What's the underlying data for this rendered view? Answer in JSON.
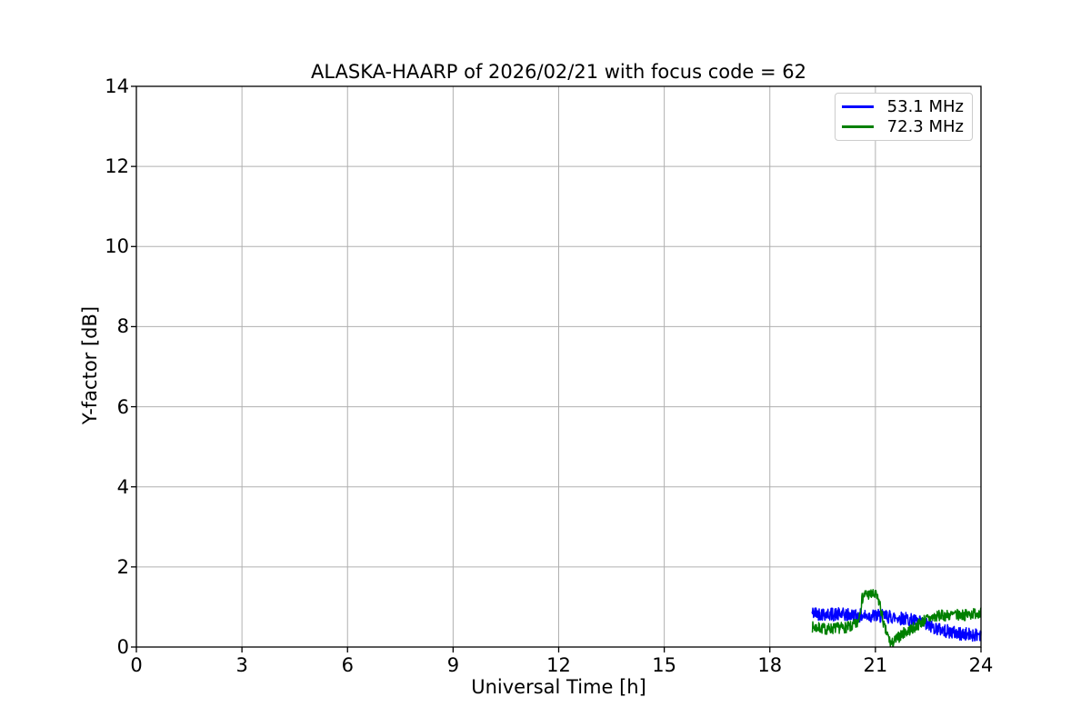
{
  "chart_data": {
    "type": "line",
    "title": "ALASKA-HAARP of 2026/02/21 with focus code = 62",
    "xlabel": "Universal Time [h]",
    "ylabel": "Y-factor [dB]",
    "xlim": [
      0,
      24
    ],
    "ylim": [
      0,
      14
    ],
    "xticks": [
      0,
      3,
      6,
      9,
      12,
      15,
      18,
      21,
      24
    ],
    "yticks": [
      0,
      2,
      4,
      6,
      8,
      10,
      12,
      14
    ],
    "grid": true,
    "grid_color": "#b0b0b0",
    "spine_color": "#000000",
    "background_color": "#ffffff",
    "legend": {
      "position": "top-right",
      "entries": [
        {
          "label": "53.1 MHz",
          "color": "#0000ff"
        },
        {
          "label": "72.3 MHz",
          "color": "#008000"
        }
      ]
    },
    "series": [
      {
        "name": "53.1 MHz",
        "color": "#0000ff",
        "x_start": 19.2,
        "x_end": 24.0,
        "envelope": [
          [
            19.2,
            0.85
          ],
          [
            19.7,
            0.82
          ],
          [
            20.2,
            0.8
          ],
          [
            20.7,
            0.78
          ],
          [
            21.0,
            0.78
          ],
          [
            21.5,
            0.75
          ],
          [
            21.9,
            0.7
          ],
          [
            22.3,
            0.6
          ],
          [
            22.7,
            0.48
          ],
          [
            23.0,
            0.4
          ],
          [
            23.4,
            0.33
          ],
          [
            23.7,
            0.3
          ],
          [
            24.0,
            0.33
          ]
        ],
        "noise_amplitude": 0.17,
        "points": 480,
        "seed": 42
      },
      {
        "name": "72.3 MHz",
        "color": "#008000",
        "x_start": 19.2,
        "x_end": 24.0,
        "envelope": [
          [
            19.2,
            0.5
          ],
          [
            19.6,
            0.45
          ],
          [
            20.0,
            0.48
          ],
          [
            20.3,
            0.5
          ],
          [
            20.5,
            0.6
          ],
          [
            20.62,
            1.2
          ],
          [
            20.7,
            1.32
          ],
          [
            21.0,
            1.3
          ],
          [
            21.12,
            1.1
          ],
          [
            21.25,
            0.5
          ],
          [
            21.45,
            0.06
          ],
          [
            21.6,
            0.2
          ],
          [
            21.8,
            0.35
          ],
          [
            22.1,
            0.48
          ],
          [
            22.4,
            0.68
          ],
          [
            22.8,
            0.78
          ],
          [
            23.2,
            0.8
          ],
          [
            23.6,
            0.8
          ],
          [
            24.0,
            0.88
          ]
        ],
        "noise_amplitude": 0.14,
        "points": 480,
        "seed": 7
      }
    ]
  }
}
